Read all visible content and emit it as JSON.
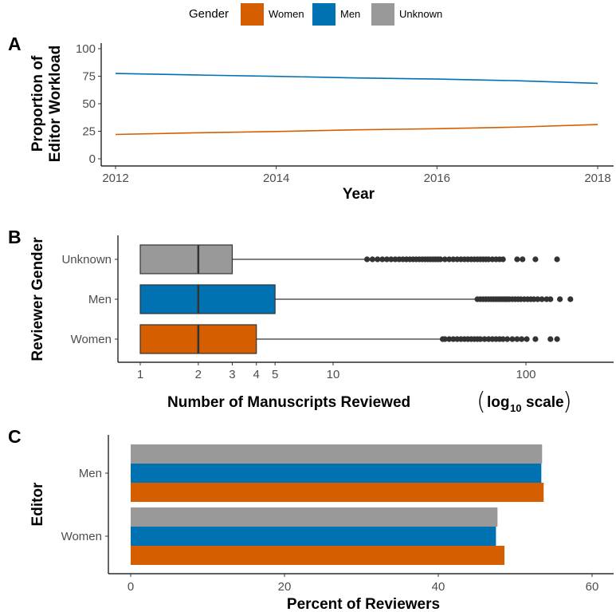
{
  "legend": {
    "title": "Gender",
    "entries": [
      {
        "label": "Women",
        "color": "#D55E00"
      },
      {
        "label": "Men",
        "color": "#0072B2"
      },
      {
        "label": "Unknown",
        "color": "#999999"
      }
    ]
  },
  "chart_data": [
    {
      "panel": "A",
      "type": "line",
      "xlabel": "Year",
      "ylabel_lines": [
        "Proportion of",
        "Editor Workload"
      ],
      "x": [
        2012,
        2013,
        2014,
        2015,
        2016,
        2017,
        2018
      ],
      "xticks": [
        "2012",
        "2014",
        "2016",
        "2018"
      ],
      "yticks": [
        "0",
        "25",
        "50",
        "75",
        "100"
      ],
      "ylim": [
        0,
        100
      ],
      "series": [
        {
          "name": "Men",
          "color": "#0072B2",
          "values": [
            77.5,
            76.1,
            74.9,
            73.4,
            72.4,
            70.9,
            68.5
          ]
        },
        {
          "name": "Women",
          "color": "#D55E00",
          "values": [
            22.1,
            23.6,
            24.8,
            26.3,
            27.3,
            28.8,
            31.1
          ]
        }
      ]
    },
    {
      "panel": "B",
      "type": "boxplot",
      "xlabel": "Number of Manuscripts Reviewed",
      "xlabel_scale": [
        "log",
        "10",
        "scale"
      ],
      "ylabel": "Reviewer Gender",
      "log_scale": true,
      "xticks": [
        "1",
        "2",
        "3",
        "4",
        "5",
        "10",
        "100"
      ],
      "categories": [
        "Unknown",
        "Men",
        "Women"
      ],
      "boxes": [
        {
          "name": "Unknown",
          "color": "#999999",
          "min": 1,
          "q1": 1,
          "median": 2,
          "q3": 3,
          "whisker_high": 15,
          "outliers": [
            15,
            16,
            17,
            18,
            19,
            20,
            21,
            22,
            23,
            24,
            25,
            26,
            27,
            28,
            29,
            30,
            31,
            32,
            33,
            34,
            35,
            36,
            38,
            40,
            42,
            44,
            46,
            48,
            50,
            52,
            54,
            56,
            58,
            60,
            62,
            64,
            67,
            70,
            73,
            76,
            90,
            96,
            112,
            145
          ]
        },
        {
          "name": "Men",
          "color": "#0072B2",
          "min": 1,
          "q1": 1,
          "median": 2,
          "q3": 5,
          "whisker_high": 56,
          "outliers": [
            56,
            58,
            60,
            62,
            64,
            66,
            68,
            70,
            72,
            74,
            76,
            78,
            80,
            82,
            85,
            88,
            91,
            94,
            98,
            102,
            106,
            110,
            115,
            121,
            128,
            134,
            150,
            170
          ]
        },
        {
          "name": "Women",
          "color": "#D55E00",
          "min": 1,
          "q1": 1,
          "median": 2,
          "q3": 4,
          "whisker_high": 37,
          "outliers": [
            37,
            38,
            40,
            42,
            44,
            46,
            48,
            50,
            52,
            54,
            56,
            58,
            61,
            64,
            67,
            70,
            73,
            76,
            80,
            85,
            90,
            95,
            101,
            112,
            134,
            145
          ]
        }
      ]
    },
    {
      "panel": "C",
      "type": "bar",
      "orientation": "horizontal",
      "xlabel": "Percent of Reviewers",
      "ylabel": "Editor",
      "xticks": [
        "0",
        "20",
        "40",
        "60"
      ],
      "xlim": [
        0,
        60
      ],
      "categories": [
        "Men",
        "Women"
      ],
      "series": [
        {
          "name": "Unknown",
          "color": "#999999",
          "values": [
            53.5,
            47.7
          ]
        },
        {
          "name": "Men",
          "color": "#0072B2",
          "values": [
            53.4,
            47.5
          ]
        },
        {
          "name": "Women",
          "color": "#D55E00",
          "values": [
            53.7,
            48.6
          ]
        }
      ]
    }
  ]
}
